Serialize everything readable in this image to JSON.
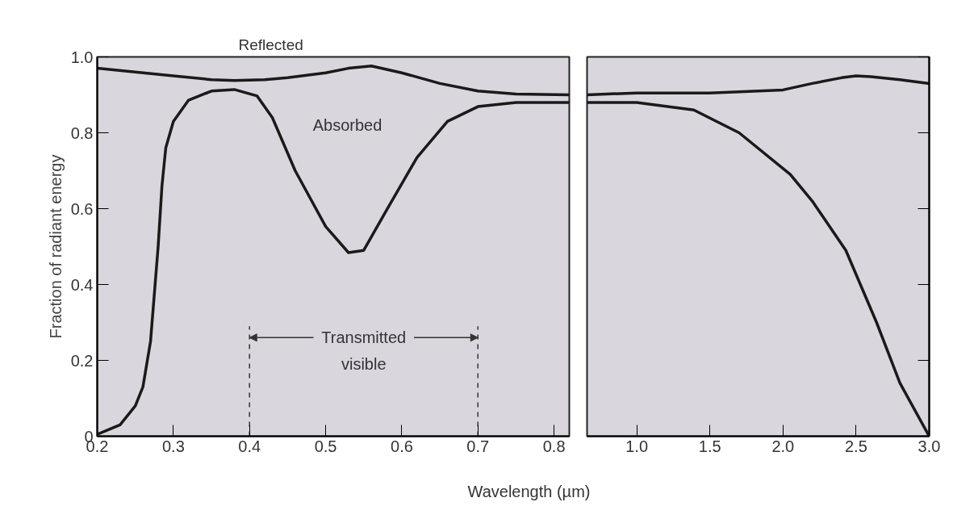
{
  "chart_data": [
    {
      "type": "line",
      "ylabel": "Fraction of radiant energy",
      "xlabel": "Wavelength (µm)",
      "xlim": [
        0.2,
        0.82
      ],
      "ylim": [
        0,
        1.0
      ],
      "xticks": [
        0.2,
        0.3,
        0.4,
        0.5,
        0.6,
        0.7,
        0.8
      ],
      "yticks": [
        0,
        0.2,
        0.4,
        0.6,
        0.8,
        {
          "value": 1.0,
          "label": "1.0"
        }
      ],
      "grid": false,
      "line_style": "solid",
      "series": [
        {
          "color": "#1a1a1a",
          "x": [
            0.2,
            0.25,
            0.3,
            0.35,
            0.38,
            0.42,
            0.45,
            0.5,
            0.53,
            0.56,
            0.6,
            0.65,
            0.7,
            0.75,
            0.82
          ],
          "values": [
            0.97,
            0.96,
            0.95,
            0.94,
            0.938,
            0.94,
            0.945,
            0.958,
            0.97,
            0.976,
            0.958,
            0.93,
            0.91,
            0.902,
            0.9
          ]
        },
        {
          "color": "#1a1a1a",
          "x": [
            0.2,
            0.23,
            0.25,
            0.26,
            0.27,
            0.28,
            0.285,
            0.29,
            0.3,
            0.32,
            0.35,
            0.38,
            0.41,
            0.43,
            0.46,
            0.5,
            0.53,
            0.55,
            0.58,
            0.62,
            0.66,
            0.7,
            0.75,
            0.82
          ],
          "values": [
            0.005,
            0.03,
            0.08,
            0.13,
            0.25,
            0.5,
            0.66,
            0.76,
            0.83,
            0.886,
            0.91,
            0.914,
            0.897,
            0.84,
            0.7,
            0.553,
            0.484,
            0.49,
            0.596,
            0.735,
            0.83,
            0.869,
            0.88,
            0.88
          ]
        }
      ],
      "annotations": [
        "Reflected",
        "Absorbed",
        {
          "text": "Transmitted visible",
          "x": 0.4,
          "y": 0.26
        }
      ],
      "ref_lines": [
        {
          "axis": "x",
          "value": 0.4,
          "line_style": "dashed"
        },
        {
          "axis": "x",
          "value": 0.7,
          "line_style": "dashed"
        }
      ]
    },
    {
      "type": "line",
      "xlim": [
        0.66,
        3.0
      ],
      "ylim": [
        0,
        1.0
      ],
      "xticks": [
        {
          "value": 1.0,
          "label": "1.0"
        },
        1.5,
        {
          "value": 2.0,
          "label": "2.0"
        },
        2.5,
        {
          "value": 3.0,
          "label": "3.0"
        }
      ],
      "yticks": [
        0,
        0.2,
        0.4,
        0.6,
        0.8,
        1.0
      ],
      "tick_labels": "x",
      "grid": false,
      "line_style": "solid",
      "series": [
        {
          "color": "#1a1a1a",
          "x": [
            0.66,
            1.0,
            1.5,
            2.0,
            2.2,
            2.4,
            2.5,
            2.6,
            2.8,
            3.0
          ],
          "values": [
            0.9,
            0.905,
            0.905,
            0.913,
            0.93,
            0.945,
            0.95,
            0.948,
            0.94,
            0.93
          ]
        },
        {
          "color": "#1a1a1a",
          "x": [
            0.66,
            1.0,
            1.39,
            1.7,
            2.05,
            2.2,
            2.43,
            2.64,
            2.8,
            3.0
          ],
          "values": [
            0.88,
            0.88,
            0.86,
            0.8,
            0.69,
            0.62,
            0.49,
            0.3,
            0.14,
            0.0
          ]
        }
      ]
    }
  ]
}
